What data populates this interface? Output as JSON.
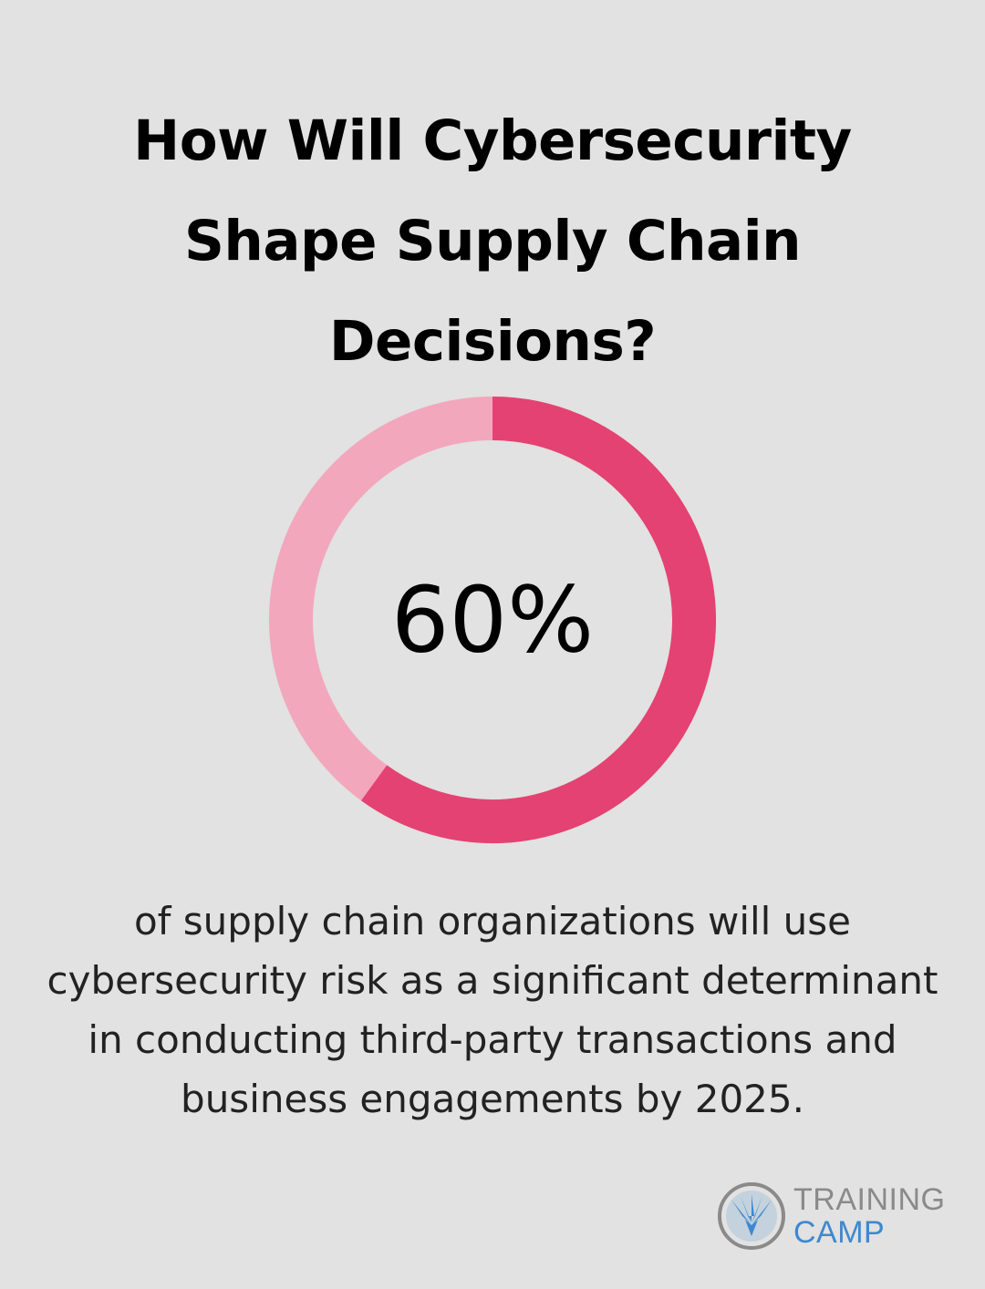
{
  "title": "How Will Cybersecurity Shape Supply Chain Decisions?",
  "chart_data": {
    "type": "pie",
    "variant": "donut",
    "values": [
      60,
      40
    ],
    "center_label": "60%",
    "colors": {
      "highlight": "#e44272",
      "remainder": "#f2a7bd"
    }
  },
  "caption": "of supply chain organizations will use cybersecurity risk as a significant determinant in conducting third-party transactions and business engagements by 2025.",
  "logo": {
    "line1": "TRAINING",
    "line2": "CAMP",
    "colors": {
      "gray": "#8a8a8a",
      "blue": "#3f88cf"
    }
  }
}
